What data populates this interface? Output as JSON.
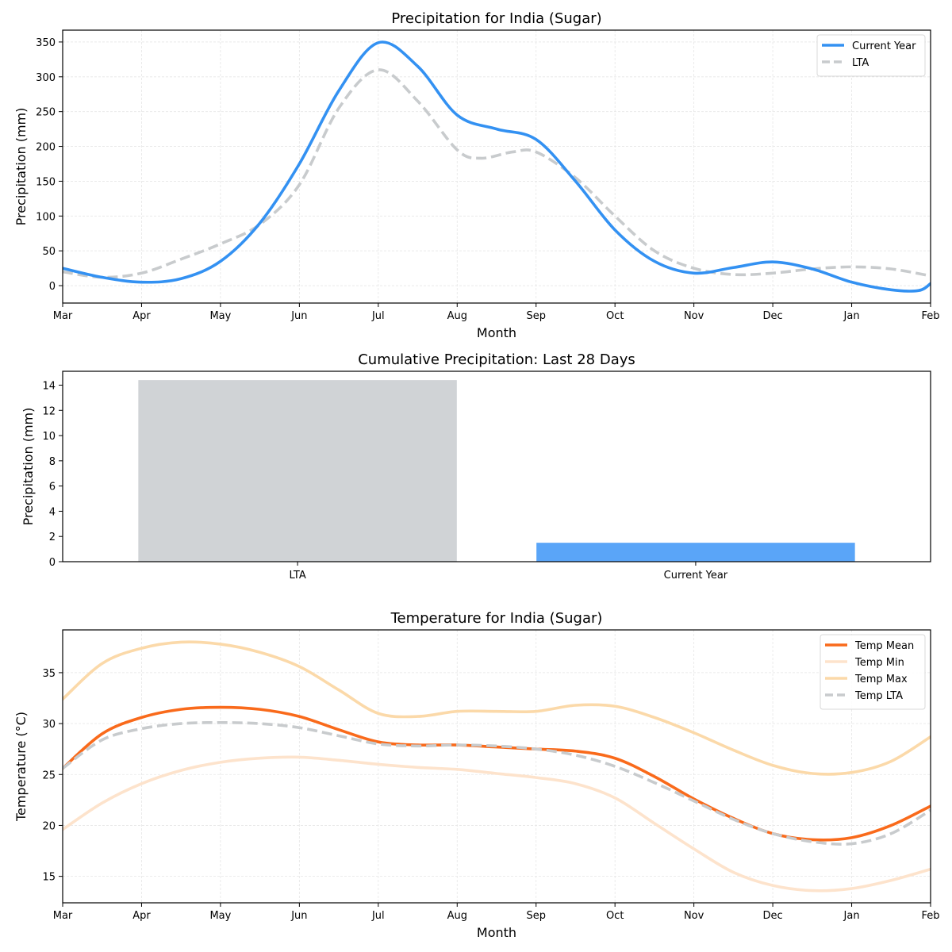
{
  "chart_data": [
    {
      "type": "line",
      "title": "Precipitation for India (Sugar)",
      "xlabel": "Month",
      "ylabel": "Precipitation (mm)",
      "x_ticks": [
        "Mar",
        "Apr",
        "May",
        "Jun",
        "Jul",
        "Aug",
        "Sep",
        "Oct",
        "Nov",
        "Dec",
        "Jan",
        "Feb"
      ],
      "y_ticks": [
        0,
        50,
        100,
        150,
        200,
        250,
        300,
        350
      ],
      "ylim": [
        -25,
        367
      ],
      "xlim": [
        0,
        11
      ],
      "grid": true,
      "legend_position": "top-right",
      "series": [
        {
          "name": "Current Year",
          "color": "#3391f2",
          "style": "solid",
          "x": [
            0,
            0.5,
            1,
            1.5,
            2,
            2.5,
            3,
            3.5,
            4,
            4.5,
            5,
            5.5,
            6,
            6.5,
            7,
            7.5,
            8,
            8.5,
            9,
            9.5,
            10,
            10.5,
            10.85,
            11
          ],
          "y": [
            25,
            12,
            5,
            10,
            35,
            90,
            175,
            280,
            349,
            315,
            245,
            225,
            210,
            150,
            80,
            35,
            18,
            26,
            34,
            24,
            5,
            -6,
            -7,
            3
          ]
        },
        {
          "name": "LTA",
          "color": "#c8cbcd",
          "style": "dashed",
          "x": [
            0,
            0.5,
            1,
            1.5,
            2,
            2.5,
            3,
            3.5,
            4,
            4.5,
            5,
            5.3,
            5.7,
            6,
            6.5,
            7,
            7.5,
            8,
            8.5,
            9,
            9.5,
            10,
            10.5,
            11
          ],
          "y": [
            20,
            12,
            18,
            38,
            60,
            88,
            145,
            255,
            310,
            265,
            195,
            183,
            192,
            192,
            155,
            100,
            50,
            25,
            16,
            18,
            24,
            27,
            24,
            14
          ]
        }
      ]
    },
    {
      "type": "bar",
      "title": "Cumulative Precipitation: Last 28 Days",
      "xlabel": "",
      "ylabel": "Precipitation (mm)",
      "categories": [
        "LTA",
        "Current Year"
      ],
      "values": [
        14.4,
        1.5
      ],
      "colors": [
        "#d0d3d6",
        "#5aa5f8"
      ],
      "y_ticks": [
        0,
        2,
        4,
        6,
        8,
        10,
        12,
        14
      ],
      "ylim": [
        0,
        15.1
      ],
      "grid": false
    },
    {
      "type": "line",
      "title": "Temperature for India (Sugar)",
      "xlabel": "Month",
      "ylabel": "Temperature (°C)",
      "x_ticks": [
        "Mar",
        "Apr",
        "May",
        "Jun",
        "Jul",
        "Aug",
        "Sep",
        "Oct",
        "Nov",
        "Dec",
        "Jan",
        "Feb"
      ],
      "y_ticks": [
        15,
        20,
        25,
        30,
        35
      ],
      "ylim": [
        12.4,
        39.2
      ],
      "xlim": [
        0,
        11
      ],
      "grid": true,
      "legend_position": "top-right",
      "series": [
        {
          "name": "Temp Mean",
          "color": "#f96a1b",
          "style": "solid",
          "x": [
            0,
            0.5,
            1,
            1.5,
            2,
            2.5,
            3,
            3.5,
            4,
            4.5,
            5,
            5.5,
            6,
            6.5,
            7,
            7.5,
            8,
            8.5,
            9,
            9.5,
            10,
            10.5,
            11
          ],
          "y": [
            25.6,
            29.0,
            30.6,
            31.4,
            31.6,
            31.4,
            30.7,
            29.4,
            28.2,
            27.9,
            27.9,
            27.7,
            27.5,
            27.3,
            26.6,
            24.8,
            22.6,
            20.7,
            19.2,
            18.6,
            18.8,
            20.0,
            21.9
          ]
        },
        {
          "name": "Temp Min",
          "color": "#fde3cc",
          "style": "solid",
          "x": [
            0,
            0.5,
            1,
            1.5,
            2,
            2.5,
            3,
            3.5,
            4,
            4.5,
            5,
            5.5,
            6,
            6.5,
            7,
            7.5,
            8,
            8.5,
            9,
            9.5,
            10,
            10.5,
            11
          ],
          "y": [
            19.6,
            22.2,
            24.1,
            25.4,
            26.2,
            26.6,
            26.7,
            26.4,
            26.0,
            25.7,
            25.5,
            25.1,
            24.7,
            24.1,
            22.7,
            20.2,
            17.7,
            15.4,
            14.1,
            13.6,
            13.8,
            14.6,
            15.7
          ]
        },
        {
          "name": "Temp Max",
          "color": "#fbd9a9",
          "style": "solid",
          "x": [
            0,
            0.5,
            1,
            1.5,
            2,
            2.5,
            3,
            3.5,
            4,
            4.5,
            5,
            5.5,
            6,
            6.5,
            7,
            7.5,
            8,
            8.5,
            9,
            9.5,
            10,
            10.5,
            11
          ],
          "y": [
            32.4,
            35.9,
            37.4,
            38.0,
            37.8,
            37.0,
            35.6,
            33.3,
            31.0,
            30.7,
            31.2,
            31.2,
            31.2,
            31.8,
            31.7,
            30.6,
            29.1,
            27.4,
            25.9,
            25.1,
            25.2,
            26.3,
            28.7
          ]
        },
        {
          "name": "Temp LTA",
          "color": "#c8cbcd",
          "style": "dashed",
          "x": [
            0,
            0.5,
            1,
            1.5,
            2,
            2.5,
            3,
            3.5,
            4,
            4.5,
            5,
            5.5,
            6,
            6.5,
            7,
            7.5,
            8,
            8.5,
            9,
            9.5,
            10,
            10.5,
            11
          ],
          "y": [
            25.6,
            28.4,
            29.5,
            30.0,
            30.1,
            30.0,
            29.6,
            28.8,
            28.0,
            27.8,
            27.9,
            27.8,
            27.5,
            26.9,
            25.8,
            24.2,
            22.4,
            20.6,
            19.2,
            18.4,
            18.2,
            19.2,
            21.5
          ]
        }
      ]
    }
  ]
}
